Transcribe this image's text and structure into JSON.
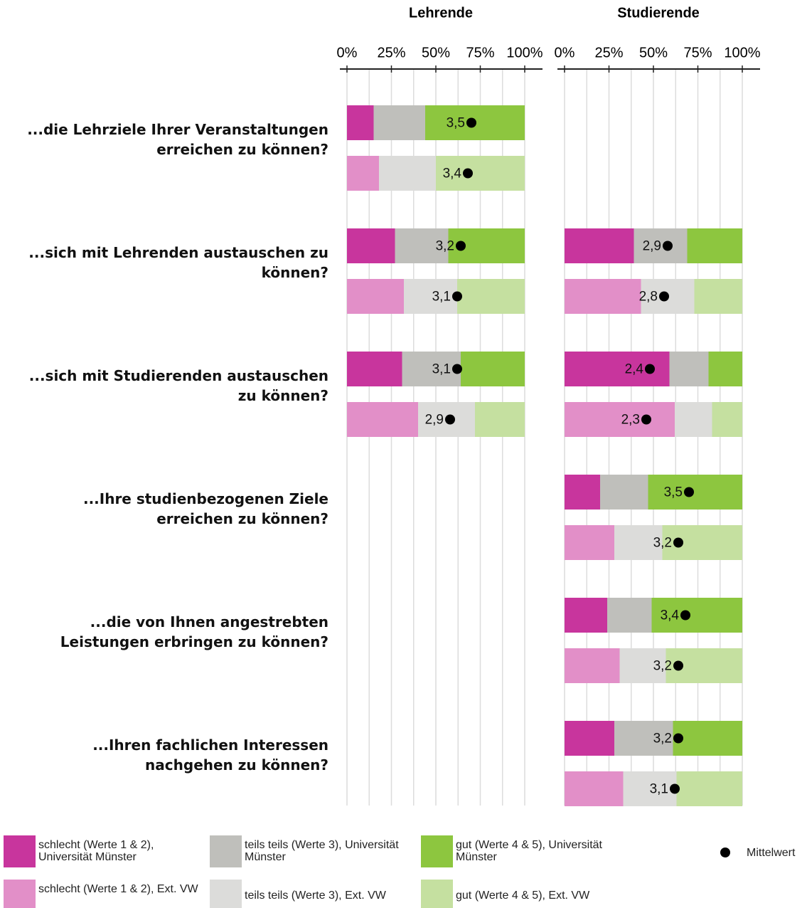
{
  "chart_data": {
    "type": "bar",
    "stacked": true,
    "panels": [
      {
        "title": "Lehrende"
      },
      {
        "title": "Studierende"
      }
    ],
    "categories": [
      "...die Lehrziele Ihrer Veranstaltungen erreichen zu können?",
      "...sich mit Lehrenden austauschen zu können?",
      "...sich mit Studierenden austauschen zu können?",
      "...Ihre studienbezogenen Ziele erreichen zu können?",
      "...die von Ihnen angestrebten Leistungen erbringen zu können?",
      "...Ihren fachlichen Interessen nachgehen zu können?"
    ],
    "xlim": [
      0,
      100
    ],
    "xticks": [
      {
        "value": 0,
        "label": "0%"
      },
      {
        "value": 25,
        "label": "25%"
      },
      {
        "value": 50,
        "label": "50%"
      },
      {
        "value": 75,
        "label": "75%"
      },
      {
        "value": 100,
        "label": "100%"
      }
    ],
    "xminorticks": [
      12.5,
      37.5,
      62.5,
      87.5
    ],
    "grid": true,
    "series": [
      {
        "name": "schlecht (Werte 1 & 2), Universität Münster",
        "color": "#c8359d",
        "row": 0,
        "values": [
          [
            15,
            27,
            31,
            null,
            null,
            null
          ],
          [
            null,
            39,
            59,
            20,
            24,
            28
          ]
        ]
      },
      {
        "name": "teils teils (Werte 3), Universität Münster",
        "color": "#bfbfbb",
        "row": 0,
        "values": [
          [
            29,
            30,
            33,
            null,
            null,
            null
          ],
          [
            null,
            30,
            22,
            27,
            25,
            33
          ]
        ]
      },
      {
        "name": "gut (Werte 4 & 5), Universität Münster",
        "color": "#8dc63f",
        "row": 0,
        "values": [
          [
            56,
            43,
            36,
            null,
            null,
            null
          ],
          [
            null,
            31,
            19,
            53,
            51,
            39
          ]
        ]
      },
      {
        "name": "schlecht (Werte 1 & 2), Ext. VW",
        "color": "#e28fc8",
        "row": 1,
        "values": [
          [
            18,
            32,
            40,
            null,
            null,
            null
          ],
          [
            null,
            43,
            62,
            28,
            31,
            33
          ]
        ]
      },
      {
        "name": "teils teils (Werte 3), Ext. VW",
        "color": "#dcdcda",
        "row": 1,
        "values": [
          [
            32,
            30,
            32,
            null,
            null,
            null
          ],
          [
            null,
            30,
            21,
            27,
            26,
            30
          ]
        ]
      },
      {
        "name": "gut (Werte 4 & 5), Ext. VW",
        "color": "#c5e0a0",
        "row": 1,
        "values": [
          [
            50,
            38,
            28,
            null,
            null,
            null
          ],
          [
            null,
            27,
            17,
            45,
            43,
            37
          ]
        ]
      }
    ],
    "mean_name": "Mittelwert",
    "means": [
      {
        "row": 0,
        "values": [
          [
            3.5,
            3.2,
            3.1,
            null,
            null,
            null
          ],
          [
            null,
            2.9,
            2.4,
            3.5,
            3.4,
            3.2
          ]
        ],
        "value_labels": [
          [
            "3,5",
            "3,2",
            "3,1",
            null,
            null,
            null
          ],
          [
            null,
            "2,9",
            "2,4",
            "3,5",
            "3,4",
            "3,2"
          ]
        ]
      },
      {
        "row": 1,
        "values": [
          [
            3.4,
            3.1,
            2.9,
            null,
            null,
            null
          ],
          [
            null,
            2.8,
            2.3,
            3.2,
            3.2,
            3.1
          ]
        ],
        "value_labels": [
          [
            "3,4",
            "3,1",
            "2,9",
            null,
            null,
            null
          ],
          [
            null,
            "2,8",
            "2,3",
            "3,2",
            "3,2",
            "3,1"
          ]
        ]
      }
    ]
  }
}
